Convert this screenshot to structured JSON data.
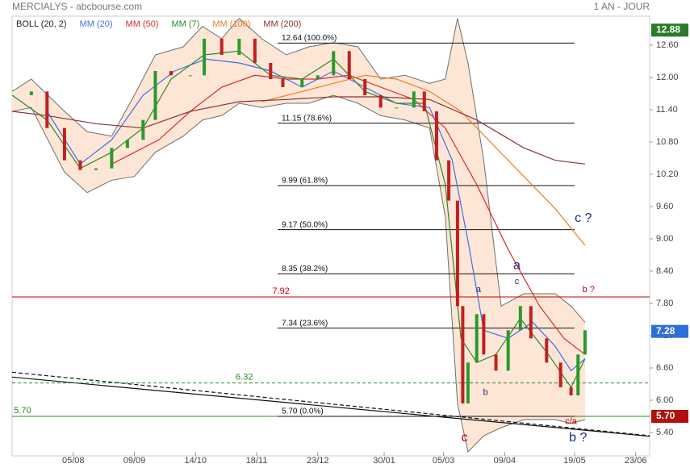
{
  "header": {
    "title": "MERCIALYS - abcbourse.com",
    "period": "1 AN - JOUR"
  },
  "chart_data": {
    "type": "line",
    "xlim": [
      -35,
      330
    ],
    "ylim": [
      5.04,
      13.14
    ],
    "xticks": [
      {
        "value": 0,
        "label": "05/08"
      },
      {
        "value": 35,
        "label": "09/09"
      },
      {
        "value": 70,
        "label": "14/10"
      },
      {
        "value": 105,
        "label": "18/11"
      },
      {
        "value": 140,
        "label": "23/12"
      },
      {
        "value": 178,
        "label": "30/01"
      },
      {
        "value": 212,
        "label": "05/03"
      },
      {
        "value": 247,
        "label": "09/04"
      },
      {
        "value": 287,
        "label": "19/05"
      },
      {
        "value": 322,
        "label": "23/06"
      }
    ],
    "yticks": [
      {
        "value": 5.4,
        "label": "5.40"
      },
      {
        "value": 6.0,
        "label": "6.00"
      },
      {
        "value": 6.6,
        "label": "6.60"
      },
      {
        "value": 7.2,
        "label": "7.20"
      },
      {
        "value": 7.8,
        "label": "7.80"
      },
      {
        "value": 8.4,
        "label": "8.40"
      },
      {
        "value": 9.0,
        "label": "9.00"
      },
      {
        "value": 9.6,
        "label": "9.60"
      },
      {
        "value": 10.2,
        "label": "10.20"
      },
      {
        "value": 10.8,
        "label": "10.80"
      },
      {
        "value": 11.4,
        "label": "11.40"
      },
      {
        "value": 12.0,
        "label": "12.00"
      },
      {
        "value": 12.6,
        "label": "12.60"
      }
    ],
    "band": {
      "name": "BOLL (20, 2)",
      "color": "#6e6e6e",
      "fill": "#fde6d6",
      "x": [
        -35,
        -24,
        -5,
        8,
        22,
        35,
        47,
        63,
        74,
        85,
        95,
        108,
        122,
        135,
        149,
        163,
        176,
        190,
        204,
        213,
        220,
        226,
        235,
        245,
        258,
        276,
        285,
        293
      ],
      "upper": [
        11.74,
        11.97,
        11.37,
        10.99,
        10.91,
        11.67,
        12.42,
        12.57,
        12.95,
        12.72,
        13.1,
        12.72,
        12.42,
        12.57,
        12.65,
        12.57,
        11.97,
        12.04,
        11.89,
        11.97,
        13.1,
        12.27,
        10.46,
        7.75,
        7.98,
        7.98,
        7.75,
        7.45
      ],
      "lower": [
        11.37,
        11.44,
        10.24,
        9.86,
        10.09,
        10.16,
        10.61,
        10.91,
        11.21,
        11.29,
        11.52,
        11.44,
        11.52,
        11.52,
        11.67,
        11.52,
        11.29,
        11.21,
        11.06,
        9.41,
        5.94,
        5.04,
        5.34,
        5.49,
        5.64,
        5.64,
        5.57,
        5.64
      ]
    },
    "price": {
      "up_color": "#2a9a2a",
      "down_color": "#c02020",
      "x": [
        -35,
        -24,
        -15,
        -5,
        4,
        13,
        22,
        31,
        40,
        47,
        56,
        67,
        75,
        85,
        95,
        104,
        113,
        120,
        131,
        140,
        149,
        158,
        167,
        176,
        185,
        195,
        201,
        208,
        215,
        220,
        223,
        226,
        231,
        235,
        242,
        249,
        256,
        262,
        271,
        279,
        285,
        289,
        293
      ],
      "values": [
        11.67,
        11.74,
        11.06,
        10.46,
        10.28,
        10.31,
        10.69,
        10.84,
        11.21,
        12.12,
        12.04,
        12.04,
        12.72,
        12.42,
        12.72,
        12.27,
        11.97,
        11.82,
        11.97,
        12.04,
        12.49,
        11.97,
        11.67,
        11.44,
        11.44,
        11.74,
        11.37,
        10.46,
        9.71,
        7.75,
        5.94,
        6.7,
        7.6,
        6.85,
        6.55,
        7.3,
        7.75,
        7.15,
        6.7,
        6.24,
        6.09,
        6.85,
        7.3
      ]
    },
    "series": [
      {
        "name": "MM (20)",
        "color": "#3f6fe8",
        "x": [
          -15,
          4,
          22,
          40,
          58,
          76,
          95,
          113,
          131,
          149,
          167,
          185,
          204,
          217,
          226,
          235,
          249,
          263,
          276,
          285,
          293
        ],
        "values": [
          11.37,
          10.39,
          10.84,
          11.67,
          12.12,
          12.34,
          12.27,
          12.12,
          11.82,
          12.12,
          11.82,
          11.52,
          11.44,
          10.46,
          8.96,
          7.3,
          7.15,
          7.45,
          7.0,
          6.55,
          6.77
        ]
      },
      {
        "name": "MM (50)",
        "color": "#e02828",
        "x": [
          22,
          49,
          67,
          85,
          104,
          122,
          140,
          158,
          176,
          195,
          213,
          231,
          249,
          267,
          281,
          293
        ],
        "values": [
          10.39,
          10.84,
          11.37,
          11.82,
          12.04,
          11.97,
          11.97,
          12.04,
          11.82,
          11.59,
          11.06,
          10.01,
          8.8,
          7.75,
          7.15,
          6.85
        ]
      },
      {
        "name": "MM (7)",
        "color": "#2a8a2a",
        "x": [
          -35,
          -15,
          4,
          22,
          40,
          56,
          75,
          95,
          113,
          131,
          149,
          167,
          185,
          201,
          213,
          222,
          231,
          242,
          256,
          272,
          285,
          293
        ],
        "values": [
          11.67,
          11.21,
          10.31,
          10.61,
          11.06,
          11.97,
          12.42,
          12.49,
          12.04,
          11.97,
          12.34,
          11.74,
          11.52,
          11.52,
          10.01,
          7.15,
          6.7,
          6.85,
          7.52,
          6.85,
          6.24,
          6.77
        ]
      },
      {
        "name": "MM (100)",
        "color": "#f07c1e",
        "x": [
          108,
          131,
          149,
          167,
          185,
          204,
          222,
          240,
          258,
          276,
          293
        ],
        "values": [
          11.55,
          11.74,
          11.89,
          12.04,
          11.97,
          11.74,
          11.37,
          10.76,
          10.16,
          9.56,
          8.88
        ]
      },
      {
        "name": "MM (200)",
        "color": "#8b3434",
        "x": [
          -35,
          -15,
          13,
          40,
          67,
          95,
          122,
          149,
          176,
          204,
          231,
          258,
          276,
          293
        ],
        "values": [
          11.37,
          11.29,
          11.14,
          11.06,
          11.37,
          11.55,
          11.59,
          11.64,
          11.64,
          11.59,
          11.21,
          10.69,
          10.46,
          10.39
        ]
      }
    ],
    "fib": {
      "x": [
        117,
        287
      ],
      "levels": [
        {
          "value": 12.64,
          "label": "12.64  (100.0%)"
        },
        {
          "value": 11.15,
          "label": "11.15  (78.6%)"
        },
        {
          "value": 9.99,
          "label": "9.99  (61.8%)"
        },
        {
          "value": 9.17,
          "label": "9.17  (50.0%)"
        },
        {
          "value": 8.35,
          "label": "8.35  (38.2%)"
        },
        {
          "value": 7.34,
          "label": "7.34  (23.6%)"
        },
        {
          "value": 5.7,
          "label": "5.70  (0.0%)"
        }
      ]
    },
    "lines": [
      {
        "value": 7.92,
        "label": "7.92",
        "color": "#c00000",
        "label_x": 114,
        "dashed": false
      },
      {
        "value": 6.32,
        "label": "6.32",
        "color": "#2a8a2a",
        "label_x": 93,
        "dashed": true
      },
      {
        "value": 5.7,
        "label": "5.70",
        "color": "#2a8a2a",
        "label_x": -34,
        "dashed": false
      }
    ],
    "trendlines": [
      {
        "x": [
          -35,
          330
        ],
        "values": [
          6.43,
          5.33
        ],
        "dashed": false
      },
      {
        "x": [
          -35,
          330
        ],
        "values": [
          6.52,
          5.34
        ],
        "dashed": true
      }
    ],
    "annotations": [
      {
        "text": "a",
        "x": 232,
        "y": 8.05,
        "color": "#1a2a7a",
        "size": "small"
      },
      {
        "text": "b",
        "x": 236,
        "y": 6.14,
        "color": "#1a2a7a",
        "size": "small"
      },
      {
        "text": "c",
        "x": 254,
        "y": 8.2,
        "color": "#1a2a7a",
        "size": "small"
      },
      {
        "text": "a",
        "x": 254,
        "y": 8.5,
        "color": "#1a2a7a",
        "size": "large"
      },
      {
        "text": "c ?",
        "x": 292,
        "y": 9.38,
        "color": "#1a2a7a",
        "size": "large"
      },
      {
        "text": "b ?",
        "x": 295,
        "y": 8.05,
        "color": "#c00000",
        "size": "small"
      },
      {
        "text": "c/a",
        "x": 285,
        "y": 5.6,
        "color": "#c00000",
        "size": "small"
      },
      {
        "text": "b ?",
        "x": 289,
        "y": 5.3,
        "color": "#1a2a7a",
        "size": "large"
      },
      {
        "text": "c",
        "x": 224,
        "y": 5.3,
        "color": "#c00000",
        "size": "large"
      }
    ],
    "price_tags": [
      {
        "value": 12.88,
        "label": "12.88",
        "color": "#2a7a2a"
      },
      {
        "value": 7.28,
        "label": "7.28",
        "color": "#2f6fd8"
      },
      {
        "value": 5.7,
        "label": "5.70",
        "color": "#b01010"
      }
    ]
  }
}
